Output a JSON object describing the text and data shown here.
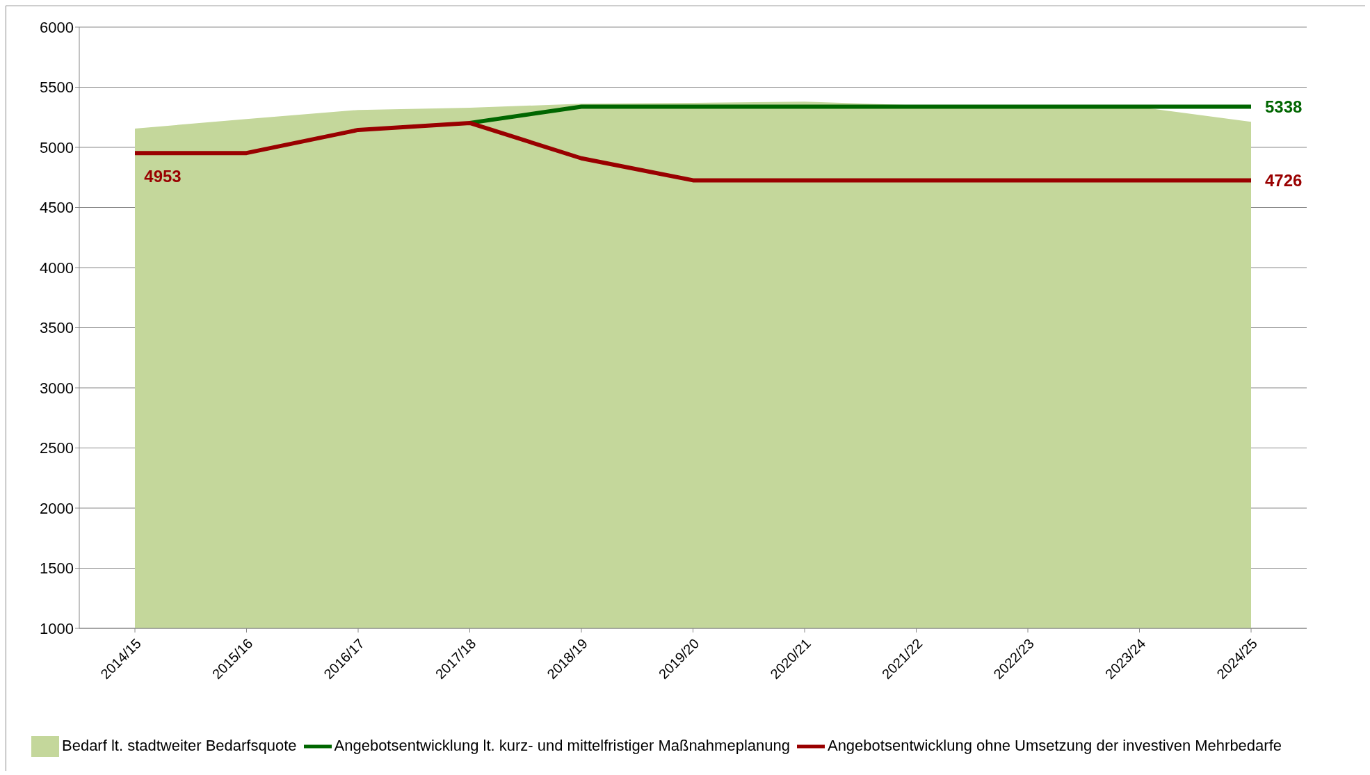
{
  "chart_data": {
    "type": "line",
    "categories": [
      "2014/15",
      "2015/16",
      "2016/17",
      "2017/18",
      "2018/19",
      "2019/20",
      "2020/21",
      "2021/22",
      "2022/23",
      "2023/24",
      "2024/25"
    ],
    "series": [
      {
        "name": "Bedarf lt. stadtweiter Bedarfsquote",
        "type": "area",
        "color": "#c4d79b",
        "values": [
          5156,
          5236,
          5311,
          5330,
          5362,
          5370,
          5380,
          5350,
          5340,
          5335,
          5213
        ]
      },
      {
        "name": "Angebotsentwicklung lt. kurz- und mittelfristiger Maßnahmeplanung",
        "color": "#006600",
        "values": [
          null,
          null,
          null,
          5203,
          5338,
          5338,
          5338,
          5338,
          5338,
          5338,
          5338
        ]
      },
      {
        "name": "Angebotsentwicklung ohne Umsetzung der investiven Mehrbedarfe",
        "color": "#990000",
        "values": [
          4953,
          4953,
          5145,
          5203,
          4909,
          4726,
          4726,
          4726,
          4726,
          4726,
          4726
        ]
      }
    ],
    "annotations": [
      {
        "text": "4953",
        "x": "2014/15",
        "y": 4953
      },
      {
        "text": "5338",
        "x": "2024/25",
        "y": 5338
      },
      {
        "text": "4726",
        "x": "2024/25",
        "y": 4726
      }
    ],
    "ylim": [
      1000,
      6000
    ],
    "yticks": [
      1000,
      1500,
      2000,
      2500,
      3000,
      3500,
      4000,
      4500,
      5000,
      5500,
      6000
    ],
    "grid": "y",
    "legend": "bottom",
    "marker": "none",
    "line_style": "solid"
  }
}
